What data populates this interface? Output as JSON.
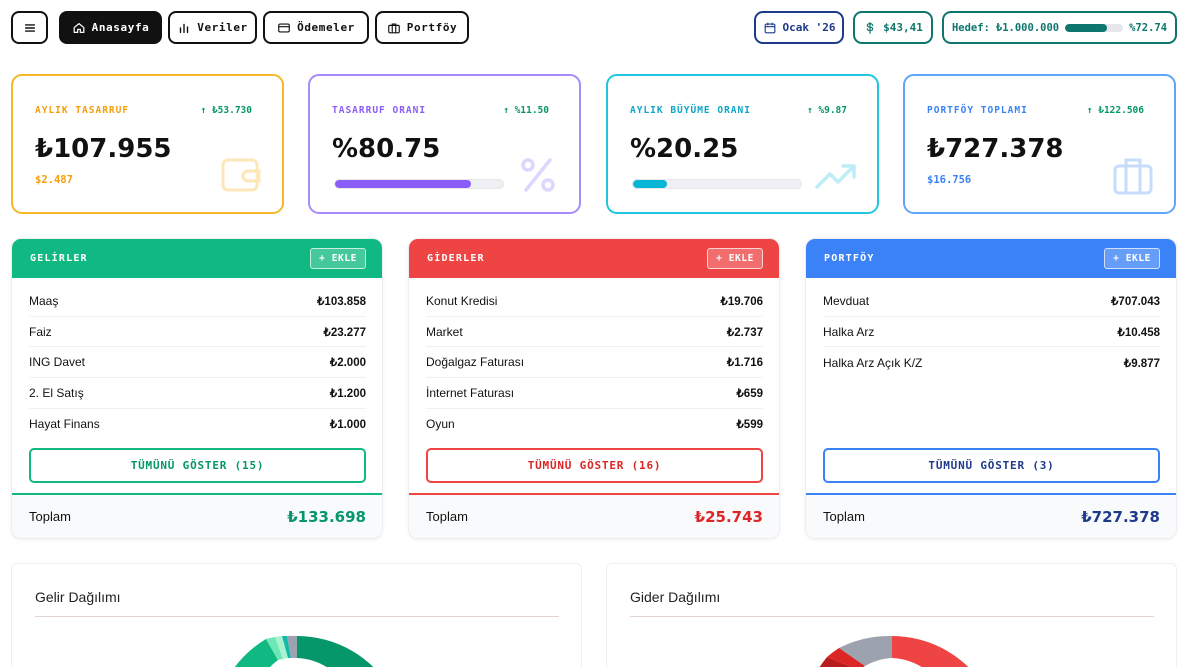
{
  "nav": {
    "home": "Anasayfa",
    "data": "Veriler",
    "payments": "Ödemeler",
    "portfolio": "Portföy"
  },
  "status": {
    "period": "Ocak '26",
    "usd_rate": "$43,41",
    "goal_label": "Hedef:",
    "goal_amount": "₺1.000.000",
    "goal_percent_text": "%72.74",
    "goal_progress": 0.7274
  },
  "colors": {
    "amber": "#f5b82a",
    "purple": "#a78bfa",
    "cyan": "#22c5e0",
    "blue": "#60a5fa",
    "income": "#10b981",
    "expense": "#ef4444",
    "portfolio": "#3b82f6",
    "teal_dark": "#0f766e",
    "positive": "#059669"
  },
  "stats": [
    {
      "label": "AYLIK TASARRUF",
      "delta": "↑ ₺53.730",
      "value": "₺107.955",
      "sub": "$2.487",
      "icon": "wallet-icon"
    },
    {
      "label": "TASARRUF ORANI",
      "delta": "↑ %11.50",
      "value": "%80.75",
      "progress": 0.8075,
      "icon": "percent-icon"
    },
    {
      "label": "AYLIK BÜYÜME ORANI",
      "delta": "↑ %9.87",
      "value": "%20.25",
      "progress": 0.2025,
      "icon": "trend-up-icon"
    },
    {
      "label": "PORTFÖY TOPLAMI",
      "delta": "↑ ₺122.506",
      "value": "₺727.378",
      "sub": "$16.756",
      "icon": "briefcase-icon"
    }
  ],
  "panels": {
    "income": {
      "title": "GELİRLER",
      "add": "+ EKLE",
      "items": [
        {
          "name": "Maaş",
          "amount": "₺103.858"
        },
        {
          "name": "Faiz",
          "amount": "₺23.277"
        },
        {
          "name": "ING Davet",
          "amount": "₺2.000"
        },
        {
          "name": "2. El Satış",
          "amount": "₺1.200"
        },
        {
          "name": "Hayat Finans",
          "amount": "₺1.000"
        }
      ],
      "show_all": "TÜMÜNÜ GÖSTER (15)",
      "total_label": "Toplam",
      "total": "₺133.698"
    },
    "expense": {
      "title": "GİDERLER",
      "add": "+ EKLE",
      "items": [
        {
          "name": "Konut Kredisi",
          "amount": "₺19.706"
        },
        {
          "name": "Market",
          "amount": "₺2.737"
        },
        {
          "name": "Doğalgaz Faturası",
          "amount": "₺1.716"
        },
        {
          "name": "İnternet Faturası",
          "amount": "₺659"
        },
        {
          "name": "Oyun",
          "amount": "₺599"
        }
      ],
      "show_all": "TÜMÜNÜ GÖSTER (16)",
      "total_label": "Toplam",
      "total": "₺25.743"
    },
    "portfolio": {
      "title": "PORTFÖY",
      "add": "+ EKLE",
      "items": [
        {
          "name": "Mevduat",
          "amount": "₺707.043"
        },
        {
          "name": "Halka Arz",
          "amount": "₺10.458"
        },
        {
          "name": "Halka Arz Açık K/Z",
          "amount": "₺9.877"
        }
      ],
      "show_all": "TÜMÜNÜ GÖSTER (3)",
      "total_label": "Toplam",
      "total": "₺727.378"
    }
  },
  "charts": {
    "income_title": "Gelir Dağılımı",
    "expense_title": "Gider Dağılımı"
  }
}
